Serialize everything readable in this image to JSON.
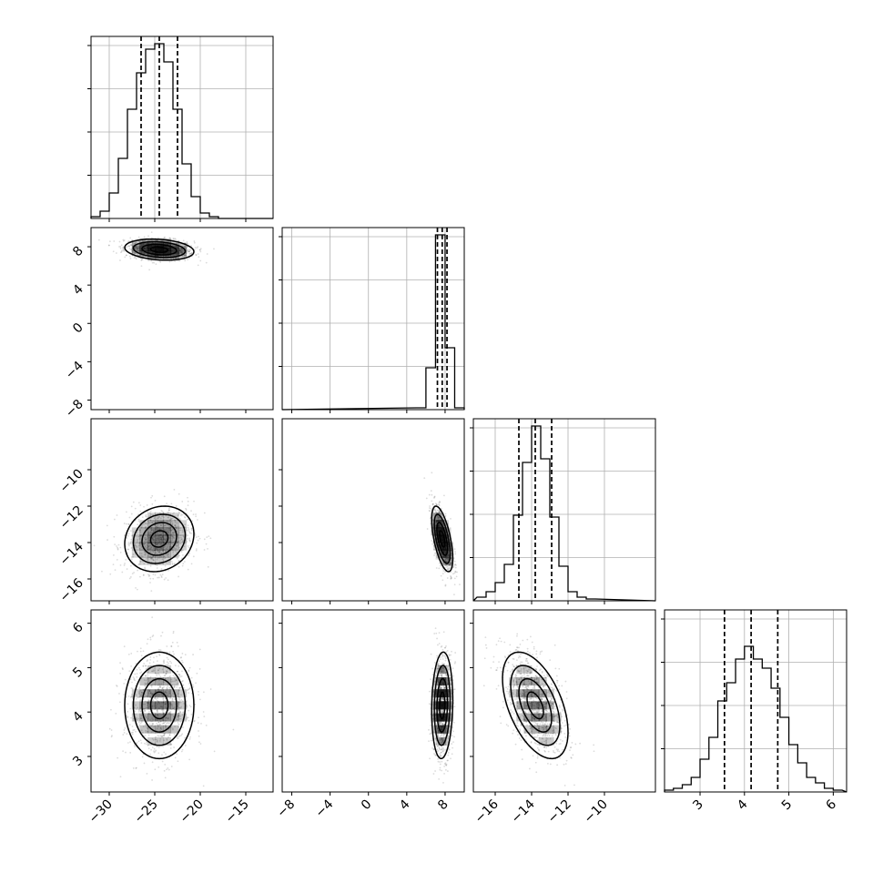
{
  "chart_data": {
    "type": "corner",
    "grid": true,
    "ticks": [
      [
        "−30",
        "−25",
        "−20",
        "−15"
      ],
      [
        "−8",
        "−4",
        "0",
        "4",
        "8"
      ],
      [
        "−16",
        "−14",
        "−12",
        "−10"
      ],
      [
        "3",
        "4",
        "5",
        "6"
      ]
    ],
    "parameters": [
      {
        "range": [
          -32,
          -12
        ],
        "ticks": [
          -30,
          -25,
          -20,
          -15
        ],
        "mean": -24.5,
        "sd": 1.9,
        "quantiles": [
          -26.5,
          -24.5,
          -22.5
        ],
        "histogram": {
          "x": [
            -31.5,
            -30.5,
            -29.5,
            -28.5,
            -27.5,
            -26.5,
            -25.5,
            -24.5,
            -23.5,
            -22.5,
            -21.5,
            -20.5,
            -19.5,
            -18.5,
            -17.5
          ],
          "y": [
            0.01,
            0.04,
            0.14,
            0.33,
            0.6,
            0.8,
            0.93,
            0.96,
            0.86,
            0.6,
            0.3,
            0.12,
            0.03,
            0.01,
            0
          ]
        }
      },
      {
        "range": [
          -9,
          10
        ],
        "ticks": [
          -8,
          -4,
          0,
          4,
          8
        ],
        "mean": 7.7,
        "sd": 0.55,
        "quantiles": [
          7.2,
          7.7,
          8.2
        ],
        "histogram": {
          "x": [
            5.5,
            6.5,
            7.5,
            8.5,
            9.5
          ],
          "y": [
            0.01,
            0.23,
            0.96,
            0.34,
            0.01
          ]
        }
      },
      {
        "range": [
          -17.2,
          -7.2
        ],
        "ticks": [
          -16,
          -14,
          -12,
          -10
        ],
        "mean": -13.8,
        "sd": 0.9,
        "quantiles": [
          -14.7,
          -13.8,
          -12.9
        ],
        "histogram": {
          "x": [
            -16.75,
            -16.25,
            -15.75,
            -15.25,
            -14.75,
            -14.25,
            -13.75,
            -13.25,
            -12.75,
            -12.25,
            -11.75,
            -11.25,
            -10.75
          ],
          "y": [
            0.02,
            0.05,
            0.1,
            0.2,
            0.47,
            0.76,
            0.96,
            0.78,
            0.46,
            0.19,
            0.05,
            0.02,
            0.01
          ]
        }
      },
      {
        "range": [
          2.2,
          6.3
        ],
        "ticks": [
          3,
          4,
          5,
          6
        ],
        "mean": 4.15,
        "sd": 0.6,
        "quantiles": [
          3.55,
          4.15,
          4.75
        ],
        "histogram": {
          "x": [
            2.3,
            2.5,
            2.7,
            2.9,
            3.1,
            3.3,
            3.5,
            3.7,
            3.9,
            4.1,
            4.3,
            4.5,
            4.7,
            4.9,
            5.1,
            5.3,
            5.5,
            5.7,
            5.9,
            6.1
          ],
          "y": [
            0.01,
            0.02,
            0.04,
            0.08,
            0.18,
            0.3,
            0.5,
            0.6,
            0.73,
            0.8,
            0.73,
            0.68,
            0.57,
            0.41,
            0.26,
            0.16,
            0.08,
            0.05,
            0.02,
            0.01
          ]
        }
      }
    ],
    "correlations": [
      {
        "i": 1,
        "j": 0,
        "rho": -0.2
      },
      {
        "i": 2,
        "j": 0,
        "rho": 0.15
      },
      {
        "i": 2,
        "j": 1,
        "rho": -0.6
      },
      {
        "i": 3,
        "j": 0,
        "rho": 0.0
      },
      {
        "i": 3,
        "j": 1,
        "rho": 0.1
      },
      {
        "i": 3,
        "j": 2,
        "rho": -0.5
      }
    ],
    "contour_levels_sigma": [
      0.5,
      1.0,
      1.5,
      2.0
    ]
  }
}
